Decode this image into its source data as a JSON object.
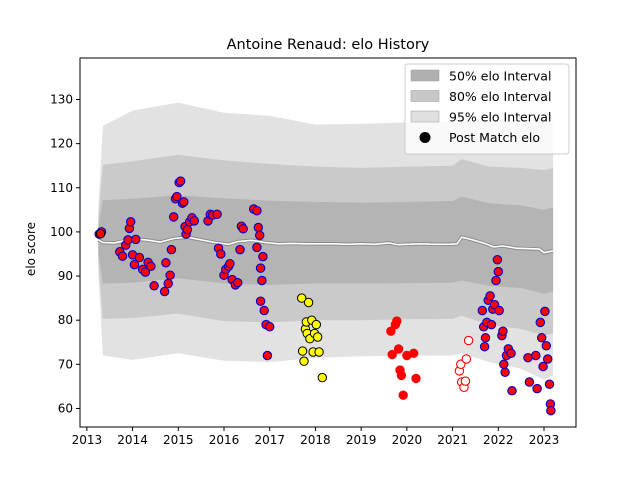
{
  "chart_data": {
    "type": "scatter",
    "title": "Antoine Renaud: elo History",
    "xlabel": "",
    "ylabel": "elo score",
    "xlim": [
      2012.85,
      2023.7
    ],
    "ylim": [
      55.8,
      139.4
    ],
    "x_ticks": [
      2013,
      2014,
      2015,
      2016,
      2017,
      2018,
      2019,
      2020,
      2021,
      2022,
      2023
    ],
    "y_ticks": [
      60,
      70,
      80,
      90,
      100,
      110,
      120,
      130
    ],
    "grid": false,
    "legend_position": "top-right",
    "legend": [
      {
        "label": "50% elo Interval",
        "kind": "band",
        "color": "#b0b0b0"
      },
      {
        "label": "80% elo Interval",
        "kind": "band",
        "color": "#c8c8c8"
      },
      {
        "label": "95% elo Interval",
        "kind": "band",
        "color": "#e0e0e0"
      },
      {
        "label": "Post Match elo",
        "kind": "marker",
        "color": "#000000"
      }
    ],
    "colors": {
      "band_50": "#b4b4b4",
      "band_80": "#cacaca",
      "band_95": "#e2e2e2",
      "mean_line": "#ffffff",
      "mean_line_under": "#8a8a8a",
      "red": "#ff0000",
      "blue": "#0000cc",
      "yellow": "#ffff00",
      "black": "#000000"
    },
    "mean_line": {
      "x": [
        2013.25,
        2013.35,
        2013.6,
        2014.0,
        2014.3,
        2014.6,
        2014.9,
        2015.2,
        2015.5,
        2015.8,
        2016.1,
        2016.3,
        2016.6,
        2016.9,
        2017.2,
        2017.5,
        2017.8,
        2018.1,
        2018.4,
        2018.7,
        2019.0,
        2019.3,
        2019.6,
        2019.8,
        2020.0,
        2020.3,
        2020.6,
        2020.9,
        2021.1,
        2021.2,
        2021.4,
        2021.7,
        2021.9,
        2022.1,
        2022.4,
        2022.7,
        2022.9,
        2023.0,
        2023.2
      ],
      "y": [
        98.2,
        97.6,
        97.5,
        98.4,
        98.2,
        97.7,
        98.5,
        98.8,
        98.2,
        97.6,
        97.2,
        97.8,
        98.1,
        97.6,
        97.3,
        97.4,
        97.3,
        97.3,
        97.3,
        97.2,
        97.3,
        97.2,
        97.5,
        97.1,
        97.2,
        97.3,
        97.2,
        97.2,
        97.3,
        98.8,
        98.3,
        97.4,
        96.6,
        96.8,
        96.3,
        96.2,
        96.1,
        95.3,
        95.7
      ]
    },
    "bands": {
      "x": [
        2013.25,
        2013.35,
        2014.0,
        2015.0,
        2016.0,
        2017.0,
        2018.0,
        2019.0,
        2020.0,
        2021.0,
        2021.2,
        2021.8,
        2022.5,
        2023.0,
        2023.2
      ],
      "p50_lo": [
        95.2,
        88.3,
        88.5,
        89.5,
        88.3,
        88.0,
        88.3,
        88.3,
        88.4,
        88.5,
        89.0,
        87.8,
        87.3,
        86.0,
        86.5
      ],
      "p50_hi": [
        101.0,
        107.2,
        107.5,
        108.3,
        107.6,
        107.1,
        106.8,
        106.6,
        106.8,
        107.0,
        108.0,
        106.5,
        106.0,
        105.0,
        105.5
      ],
      "p80_lo": [
        93.0,
        80.3,
        80.5,
        81.5,
        79.8,
        79.5,
        80.0,
        80.0,
        80.2,
        80.3,
        81.0,
        79.0,
        78.0,
        76.5,
        77.0
      ],
      "p80_hi": [
        103.0,
        115.2,
        116.0,
        117.5,
        116.2,
        115.4,
        114.8,
        114.5,
        114.8,
        115.0,
        116.5,
        114.8,
        114.5,
        114.0,
        114.5
      ],
      "p95_lo": [
        91.0,
        72.0,
        71.0,
        72.5,
        70.8,
        70.5,
        71.5,
        71.8,
        72.0,
        72.0,
        72.5,
        70.5,
        69.0,
        66.5,
        67.5
      ],
      "p95_hi": [
        105.0,
        124.0,
        127.5,
        129.3,
        127.0,
        126.3,
        124.3,
        124.5,
        124.8,
        125.0,
        127.0,
        124.8,
        125.5,
        125.8,
        124.8
      ]
    },
    "series": [
      {
        "marker": "red-fill-blue-edge",
        "points": [
          [
            2013.27,
            99.5
          ],
          [
            2013.32,
            100.0
          ],
          [
            2013.72,
            95.5
          ],
          [
            2013.78,
            94.5
          ],
          [
            2013.85,
            97.0
          ],
          [
            2013.9,
            98.2
          ],
          [
            2013.93,
            100.8
          ],
          [
            2013.96,
            102.3
          ],
          [
            2014.0,
            94.8
          ],
          [
            2014.04,
            92.6
          ],
          [
            2014.07,
            98.3
          ],
          [
            2014.15,
            94.2
          ],
          [
            2014.22,
            91.5
          ],
          [
            2014.28,
            90.9
          ],
          [
            2014.34,
            93.1
          ],
          [
            2014.4,
            92.2
          ],
          [
            2014.47,
            87.8
          ],
          [
            2014.7,
            86.5
          ],
          [
            2014.73,
            93.0
          ],
          [
            2014.78,
            88.3
          ],
          [
            2014.82,
            90.2
          ],
          [
            2014.85,
            96.0
          ],
          [
            2014.9,
            103.4
          ],
          [
            2014.94,
            107.5
          ],
          [
            2014.97,
            108.0
          ],
          [
            2015.02,
            111.2
          ],
          [
            2015.05,
            111.5
          ],
          [
            2015.09,
            106.5
          ],
          [
            2015.12,
            106.8
          ],
          [
            2015.15,
            101.2
          ],
          [
            2015.17,
            99.5
          ],
          [
            2015.2,
            100.5
          ],
          [
            2015.25,
            102.3
          ],
          [
            2015.3,
            103.2
          ],
          [
            2015.35,
            102.5
          ],
          [
            2015.65,
            102.5
          ],
          [
            2015.7,
            104.0
          ],
          [
            2015.75,
            103.8
          ],
          [
            2015.85,
            104.0
          ],
          [
            2015.88,
            96.3
          ],
          [
            2015.93,
            95.0
          ],
          [
            2016.0,
            90.2
          ],
          [
            2016.04,
            91.5
          ],
          [
            2016.1,
            92.2
          ],
          [
            2016.13,
            92.8
          ],
          [
            2016.18,
            89.2
          ],
          [
            2016.25,
            88.0
          ],
          [
            2016.3,
            88.5
          ],
          [
            2016.35,
            96.0
          ],
          [
            2016.38,
            101.3
          ],
          [
            2016.42,
            100.7
          ],
          [
            2016.65,
            105.2
          ],
          [
            2016.72,
            104.8
          ],
          [
            2016.75,
            101.0
          ],
          [
            2016.72,
            96.5
          ],
          [
            2016.78,
            99.2
          ],
          [
            2016.8,
            91.8
          ],
          [
            2016.83,
            89.0
          ],
          [
            2016.85,
            94.4
          ],
          [
            2016.8,
            84.3
          ],
          [
            2016.88,
            82.2
          ],
          [
            2016.92,
            79.0
          ],
          [
            2016.95,
            72.0
          ],
          [
            2017.0,
            78.5
          ]
        ]
      },
      {
        "marker": "red-fill-blue-edge",
        "points": [
          [
            2021.65,
            82.2
          ],
          [
            2021.68,
            78.5
          ],
          [
            2021.7,
            74.0
          ],
          [
            2021.72,
            76.0
          ],
          [
            2021.75,
            79.5
          ],
          [
            2021.78,
            84.5
          ],
          [
            2021.82,
            85.5
          ],
          [
            2021.85,
            79.0
          ],
          [
            2021.88,
            82.5
          ],
          [
            2021.92,
            83.5
          ],
          [
            2021.95,
            89.0
          ],
          [
            2021.98,
            93.7
          ],
          [
            2022.0,
            91.0
          ],
          [
            2022.02,
            82.2
          ],
          [
            2022.08,
            76.5
          ],
          [
            2022.1,
            77.5
          ],
          [
            2022.12,
            70.0
          ],
          [
            2022.15,
            68.2
          ],
          [
            2022.18,
            72.0
          ],
          [
            2022.22,
            73.5
          ],
          [
            2022.28,
            72.5
          ],
          [
            2022.3,
            64.0
          ],
          [
            2022.65,
            71.5
          ],
          [
            2022.68,
            66.0
          ],
          [
            2022.82,
            72.0
          ],
          [
            2022.85,
            64.5
          ],
          [
            2022.92,
            79.5
          ],
          [
            2022.95,
            76.0
          ],
          [
            2022.98,
            69.5
          ],
          [
            2023.02,
            82.0
          ],
          [
            2023.05,
            74.2
          ],
          [
            2023.08,
            71.2
          ],
          [
            2023.12,
            65.5
          ],
          [
            2023.14,
            61.0
          ],
          [
            2023.15,
            59.5
          ]
        ]
      },
      {
        "marker": "yellow-fill-black-edge",
        "points": [
          [
            2017.7,
            85.0
          ],
          [
            2017.72,
            73.0
          ],
          [
            2017.75,
            70.7
          ],
          [
            2017.78,
            78.0
          ],
          [
            2017.8,
            79.6
          ],
          [
            2017.82,
            77.0
          ],
          [
            2017.85,
            84.0
          ],
          [
            2017.88,
            75.8
          ],
          [
            2017.92,
            80.0
          ],
          [
            2017.95,
            72.8
          ],
          [
            2017.98,
            77.0
          ],
          [
            2018.02,
            79.0
          ],
          [
            2018.05,
            76.2
          ],
          [
            2018.08,
            72.8
          ],
          [
            2018.15,
            67.0
          ]
        ]
      },
      {
        "marker": "red-solid",
        "points": [
          [
            2019.65,
            77.5
          ],
          [
            2019.68,
            72.2
          ],
          [
            2019.75,
            79.0
          ],
          [
            2019.78,
            79.8
          ],
          [
            2019.82,
            73.5
          ],
          [
            2019.85,
            68.7
          ],
          [
            2019.88,
            67.5
          ],
          [
            2019.92,
            63.0
          ],
          [
            2020.0,
            72.0
          ],
          [
            2020.15,
            72.5
          ],
          [
            2020.2,
            66.8
          ]
        ]
      },
      {
        "marker": "white-fill-red-edge",
        "points": [
          [
            2021.15,
            68.5
          ],
          [
            2021.18,
            70.0
          ],
          [
            2021.2,
            66.0
          ],
          [
            2021.25,
            64.8
          ],
          [
            2021.28,
            66.2
          ],
          [
            2021.3,
            71.2
          ],
          [
            2021.35,
            75.4
          ]
        ]
      }
    ]
  }
}
